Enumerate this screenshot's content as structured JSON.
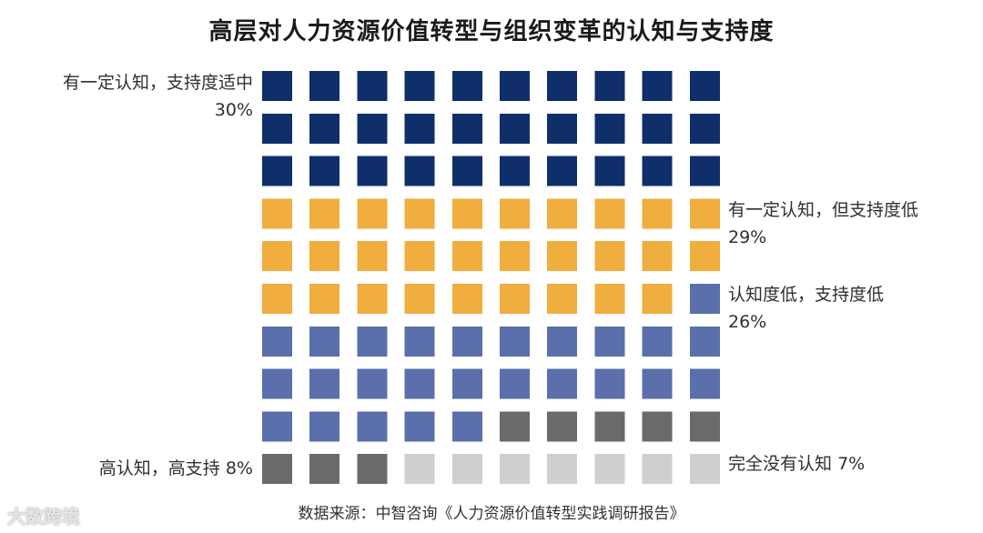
{
  "chart_data": {
    "type": "waffle",
    "title": "高层对人力资源价值转型与组织变革的认知与支持度",
    "grid": {
      "rows": 10,
      "cols": 10
    },
    "segments": [
      {
        "label": "有一定认知，支持度适中",
        "value": 30,
        "value_label": "30%",
        "color": "#0f2f6a"
      },
      {
        "label": "有一定认知，但支持度低",
        "value": 29,
        "value_label": "29%",
        "color": "#f0ae3e"
      },
      {
        "label": "认知度低，支持度低",
        "value": 26,
        "value_label": "26%",
        "color": "#5a6fab"
      },
      {
        "label": "高认知，高支持",
        "value": 8,
        "value_label": "8%",
        "color": "#6a6a6a"
      },
      {
        "label": "完全没有认知",
        "value": 7,
        "value_label": "7%",
        "color": "#cfcfcf"
      }
    ]
  },
  "source": "数据来源：中智咨询《人力资源价值转型实践调研报告》",
  "watermark": "大数跨境"
}
